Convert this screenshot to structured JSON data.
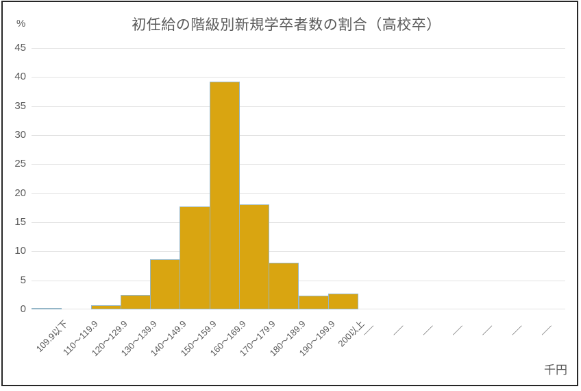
{
  "chart_data": {
    "type": "bar",
    "title": "初任給の階級別新規学卒者数の割合（高校卒）",
    "y_axis_unit": "%",
    "x_axis_unit": "千円",
    "categories": [
      "109.9以下",
      "110～119.9",
      "120～129.9",
      "130～139.9",
      "140～149.9",
      "150～159.9",
      "160～169.9",
      "170～179.9",
      "180～189.9",
      "190～199.9",
      "200以上"
    ],
    "values": [
      0.1,
      0.0,
      0.7,
      2.5,
      8.6,
      17.7,
      39.2,
      18.1,
      8.0,
      2.4,
      2.7
    ],
    "empty_category_placeholder": "／",
    "empty_category_count": 7,
    "ylim": [
      0,
      45
    ],
    "ytick_step": 5,
    "yticks": [
      45,
      40,
      35,
      30,
      25,
      20,
      15,
      10,
      5,
      0
    ],
    "grid": true,
    "legend": "none",
    "bar_fill_color": "#D9A511",
    "bar_border_color": "#94B6C7",
    "gridline_color": "#E2E2E2",
    "text_color": "#595959",
    "frame_color": "#262626"
  }
}
